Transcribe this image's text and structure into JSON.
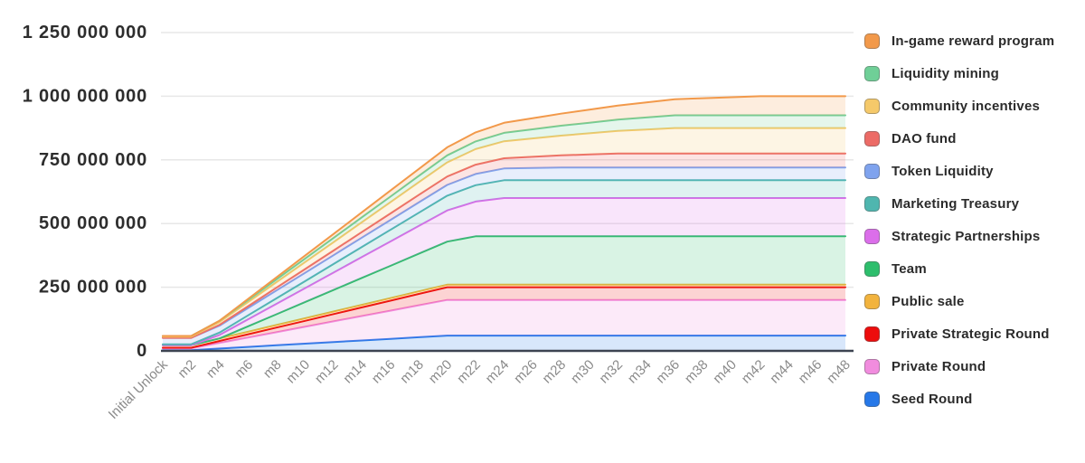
{
  "chart_data": {
    "type": "area",
    "stacked": true,
    "title": "",
    "xlabel": "",
    "ylabel": "",
    "grid": "horizontal",
    "legend_position": "right",
    "legend_order": "reverse-of-stack (top series first)",
    "ylim": [
      0,
      1250000000
    ],
    "y_ticks": [
      {
        "value": 1250000000,
        "label": "1 250 000 000"
      },
      {
        "value": 1000000000,
        "label": "1 000 000 000"
      },
      {
        "value": 750000000,
        "label": "750 000 000"
      },
      {
        "value": 500000000,
        "label": "500 000 000"
      },
      {
        "value": 250000000,
        "label": "250 000 000"
      },
      {
        "value": 0,
        "label": "0"
      }
    ],
    "x_categories": [
      "Initial Unlock",
      "m2",
      "m4",
      "m6",
      "m8",
      "m10",
      "m12",
      "m14",
      "m16",
      "m18",
      "m20",
      "m22",
      "m24",
      "m26",
      "m28",
      "m30",
      "m32",
      "m34",
      "m36",
      "m38",
      "m40",
      "m42",
      "m44",
      "m46",
      "m48"
    ],
    "series": [
      {
        "name": "Seed Round",
        "color": "#2678E8",
        "values": [
          3000000,
          3000000,
          9300000,
          15700000,
          22000000,
          28300000,
          34700000,
          41000000,
          47300000,
          53700000,
          60000000,
          60000000,
          60000000,
          60000000,
          60000000,
          60000000,
          60000000,
          60000000,
          60000000,
          60000000,
          60000000,
          60000000,
          60000000,
          60000000,
          60000000
        ]
      },
      {
        "name": "Private Round",
        "color": "#F18CDE",
        "values": [
          7000000,
          7000000,
          21800000,
          36600000,
          51300000,
          66100000,
          80900000,
          95700000,
          110400000,
          125200000,
          140000000,
          140000000,
          140000000,
          140000000,
          140000000,
          140000000,
          140000000,
          140000000,
          140000000,
          140000000,
          140000000,
          140000000,
          140000000,
          140000000,
          140000000
        ]
      },
      {
        "name": "Private Strategic Round",
        "color": "#ED0C0C",
        "values": [
          2500000,
          2500000,
          7800000,
          13100000,
          18300000,
          23600000,
          28900000,
          34200000,
          39400000,
          44700000,
          50000000,
          50000000,
          50000000,
          50000000,
          50000000,
          50000000,
          50000000,
          50000000,
          50000000,
          50000000,
          50000000,
          50000000,
          50000000,
          50000000,
          50000000
        ]
      },
      {
        "name": "Public sale",
        "color": "#F2B33D",
        "values": [
          10000000,
          10000000,
          10000000,
          10000000,
          10000000,
          10000000,
          10000000,
          10000000,
          10000000,
          10000000,
          10000000,
          10000000,
          10000000,
          10000000,
          10000000,
          10000000,
          10000000,
          10000000,
          10000000,
          10000000,
          10000000,
          10000000,
          10000000,
          10000000,
          10000000
        ]
      },
      {
        "name": "Team",
        "color": "#2DBE6C",
        "values": [
          0,
          0,
          0,
          21100000,
          42200000,
          63300000,
          84400000,
          105600000,
          126700000,
          147800000,
          168900000,
          190000000,
          190000000,
          190000000,
          190000000,
          190000000,
          190000000,
          190000000,
          190000000,
          190000000,
          190000000,
          190000000,
          190000000,
          190000000,
          190000000
        ]
      },
      {
        "name": "Strategic Partnerships",
        "color": "#DB6EEA",
        "values": [
          0,
          0,
          13600000,
          27300000,
          40900000,
          54500000,
          68200000,
          81800000,
          95500000,
          109100000,
          122700000,
          136400000,
          150000000,
          150000000,
          150000000,
          150000000,
          150000000,
          150000000,
          150000000,
          150000000,
          150000000,
          150000000,
          150000000,
          150000000,
          150000000
        ]
      },
      {
        "name": "Marketing Treasury",
        "color": "#4FB6AF",
        "values": [
          3500000,
          3500000,
          9500000,
          15600000,
          21600000,
          27700000,
          33700000,
          39800000,
          45800000,
          51900000,
          57900000,
          64000000,
          70000000,
          70000000,
          70000000,
          70000000,
          70000000,
          70000000,
          70000000,
          70000000,
          70000000,
          70000000,
          70000000,
          70000000,
          70000000
        ]
      },
      {
        "name": "Token Liquidity",
        "color": "#7FA3EE",
        "values": [
          25000000,
          25000000,
          26900000,
          28800000,
          30800000,
          32700000,
          34600000,
          36500000,
          38500000,
          40400000,
          42300000,
          44200000,
          46200000,
          48100000,
          50000000,
          50000000,
          50000000,
          50000000,
          50000000,
          50000000,
          50000000,
          50000000,
          50000000,
          50000000,
          50000000
        ]
      },
      {
        "name": "DAO fund",
        "color": "#EC6B66",
        "values": [
          0,
          0,
          3700000,
          7300000,
          11000000,
          14700000,
          18300000,
          22000000,
          25700000,
          29300000,
          33000000,
          36700000,
          40300000,
          44000000,
          47700000,
          51300000,
          55000000,
          55000000,
          55000000,
          55000000,
          55000000,
          55000000,
          55000000,
          55000000,
          55000000
        ]
      },
      {
        "name": "Community incentives",
        "color": "#F5C96A",
        "values": [
          5000000,
          5000000,
          10600000,
          16200000,
          21800000,
          27400000,
          32900000,
          38500000,
          44100000,
          49700000,
          55300000,
          60900000,
          66500000,
          72000000,
          77600000,
          83200000,
          88800000,
          94400000,
          100000000,
          100000000,
          100000000,
          100000000,
          100000000,
          100000000,
          100000000
        ]
      },
      {
        "name": "Liquidity mining",
        "color": "#6FCF97",
        "values": [
          2500000,
          2500000,
          5300000,
          8100000,
          10900000,
          13700000,
          16500000,
          19300000,
          22100000,
          24900000,
          27600000,
          30400000,
          33200000,
          36000000,
          38800000,
          41600000,
          44400000,
          47200000,
          50000000,
          50000000,
          50000000,
          50000000,
          50000000,
          50000000,
          50000000
        ]
      },
      {
        "name": "In-game reward program",
        "color": "#F2994A",
        "values": [
          0,
          0,
          0,
          3900000,
          7900000,
          11800000,
          15800000,
          19700000,
          23700000,
          27600000,
          31600000,
          35500000,
          39500000,
          43400000,
          47400000,
          51300000,
          55300000,
          59200000,
          63200000,
          67100000,
          71100000,
          75000000,
          75000000,
          75000000,
          75000000
        ]
      }
    ]
  }
}
